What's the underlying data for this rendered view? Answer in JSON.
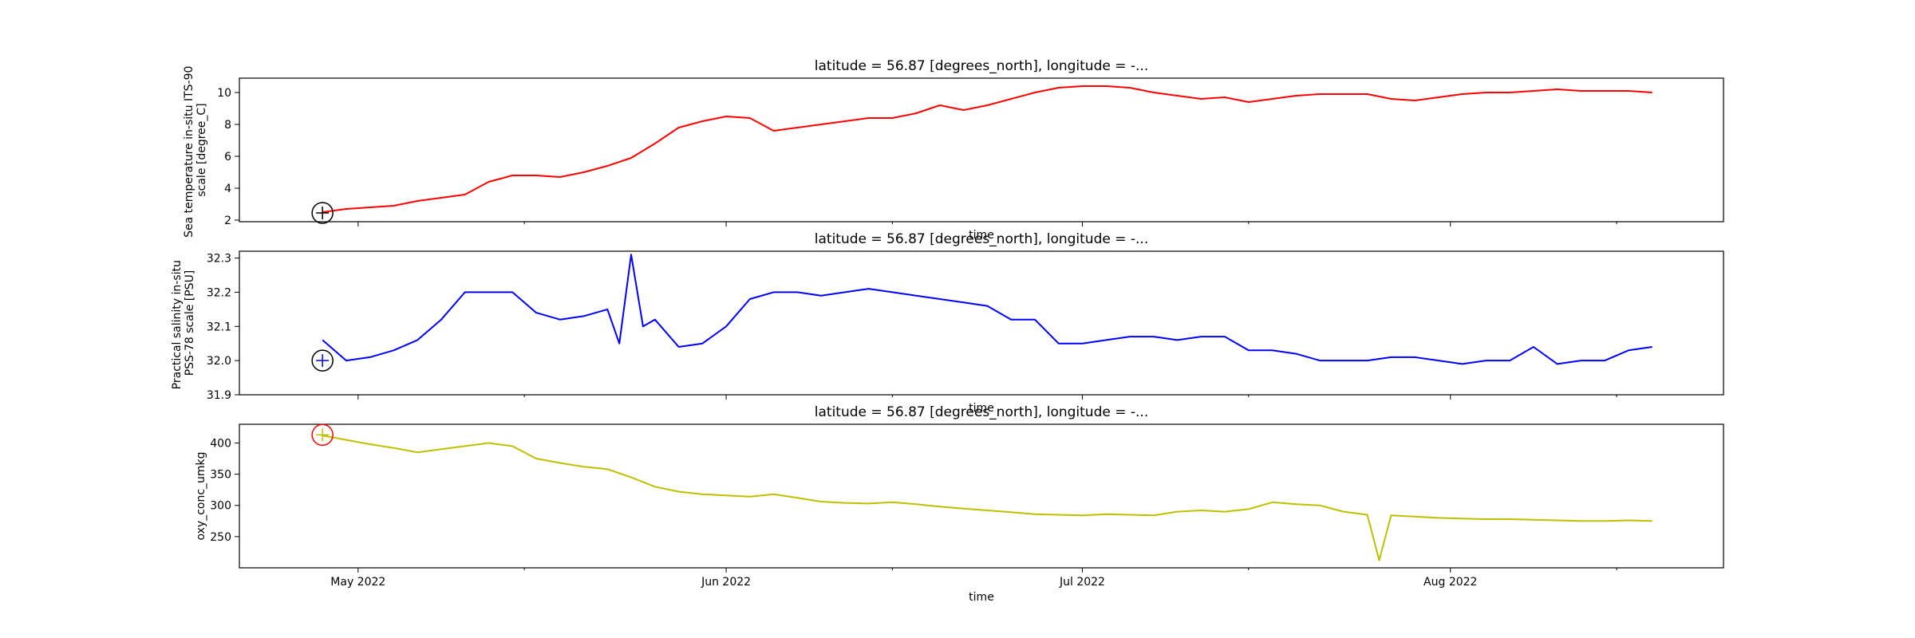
{
  "chart_data": [
    {
      "type": "line",
      "title": "latitude = 56.87 [degrees_north], longitude = -...",
      "xlabel": "time",
      "ylabel_lines": [
        "Sea temperature in-situ ITS-90",
        "scale [degree_C]"
      ],
      "ylim": [
        1.9,
        10.9
      ],
      "yticks": [
        2,
        4,
        6,
        8,
        10
      ],
      "color": "#ff0000",
      "marker": {
        "x": "2022-04-28",
        "y": 2.45,
        "circle_color": "#000000",
        "cross_color": "#000000"
      },
      "series": [
        {
          "x": [
            "2022-04-28",
            "2022-04-30",
            "2022-05-02",
            "2022-05-04",
            "2022-05-06",
            "2022-05-08",
            "2022-05-10",
            "2022-05-12",
            "2022-05-14",
            "2022-05-16",
            "2022-05-18",
            "2022-05-20",
            "2022-05-22",
            "2022-05-24",
            "2022-05-26",
            "2022-05-28",
            "2022-05-30",
            "2022-06-01",
            "2022-06-03",
            "2022-06-05",
            "2022-06-07",
            "2022-06-09",
            "2022-06-11",
            "2022-06-13",
            "2022-06-15",
            "2022-06-17",
            "2022-06-19",
            "2022-06-21",
            "2022-06-23",
            "2022-06-25",
            "2022-06-27",
            "2022-06-29",
            "2022-07-01",
            "2022-07-03",
            "2022-07-05",
            "2022-07-07",
            "2022-07-09",
            "2022-07-11",
            "2022-07-13",
            "2022-07-15",
            "2022-07-17",
            "2022-07-19",
            "2022-07-21",
            "2022-07-23",
            "2022-07-25",
            "2022-07-27",
            "2022-07-29",
            "2022-07-31",
            "2022-08-02",
            "2022-08-04",
            "2022-08-06",
            "2022-08-08",
            "2022-08-10",
            "2022-08-12",
            "2022-08-14",
            "2022-08-16",
            "2022-08-18"
          ],
          "y": [
            2.5,
            2.7,
            2.8,
            2.9,
            3.2,
            3.4,
            3.6,
            4.4,
            4.8,
            4.8,
            4.7,
            5.0,
            5.4,
            5.9,
            6.8,
            7.8,
            8.2,
            8.5,
            8.4,
            7.6,
            7.8,
            8.0,
            8.2,
            8.4,
            8.4,
            8.7,
            9.2,
            8.9,
            9.2,
            9.6,
            10.0,
            10.3,
            10.4,
            10.4,
            10.3,
            10.0,
            9.8,
            9.6,
            9.7,
            9.4,
            9.6,
            9.8,
            9.9,
            9.9,
            9.9,
            9.6,
            9.5,
            9.7,
            9.9,
            10.0,
            10.0,
            10.1,
            10.2,
            10.1,
            10.1,
            10.1,
            10.0
          ]
        }
      ]
    },
    {
      "type": "line",
      "title": "latitude = 56.87 [degrees_north], longitude = -...",
      "xlabel": "time",
      "ylabel_lines": [
        "Practical salinity in-situ",
        "PSS-78 scale [PSU]"
      ],
      "ylim": [
        31.9,
        32.32
      ],
      "yticks": [
        31.9,
        32.0,
        32.1,
        32.2,
        32.3
      ],
      "color": "#0000ff",
      "marker": {
        "x": "2022-04-28",
        "y": 32.0,
        "circle_color": "#000000",
        "cross_color": "#0000ff"
      },
      "series": [
        {
          "x": [
            "2022-04-28",
            "2022-04-30",
            "2022-05-02",
            "2022-05-04",
            "2022-05-06",
            "2022-05-08",
            "2022-05-10",
            "2022-05-12",
            "2022-05-14",
            "2022-05-16",
            "2022-05-18",
            "2022-05-20",
            "2022-05-22",
            "2022-05-23",
            "2022-05-24",
            "2022-05-25",
            "2022-05-26",
            "2022-05-28",
            "2022-05-30",
            "2022-06-01",
            "2022-06-03",
            "2022-06-05",
            "2022-06-07",
            "2022-06-09",
            "2022-06-11",
            "2022-06-13",
            "2022-06-15",
            "2022-06-17",
            "2022-06-19",
            "2022-06-21",
            "2022-06-23",
            "2022-06-25",
            "2022-06-27",
            "2022-06-29",
            "2022-07-01",
            "2022-07-03",
            "2022-07-05",
            "2022-07-07",
            "2022-07-09",
            "2022-07-11",
            "2022-07-13",
            "2022-07-15",
            "2022-07-17",
            "2022-07-19",
            "2022-07-21",
            "2022-07-23",
            "2022-07-25",
            "2022-07-27",
            "2022-07-29",
            "2022-07-31",
            "2022-08-02",
            "2022-08-04",
            "2022-08-06",
            "2022-08-08",
            "2022-08-10",
            "2022-08-12",
            "2022-08-14",
            "2022-08-16",
            "2022-08-18"
          ],
          "y": [
            32.06,
            32.0,
            32.01,
            32.03,
            32.06,
            32.12,
            32.2,
            32.2,
            32.2,
            32.14,
            32.12,
            32.13,
            32.15,
            32.05,
            32.31,
            32.1,
            32.12,
            32.04,
            32.05,
            32.1,
            32.18,
            32.2,
            32.2,
            32.19,
            32.2,
            32.21,
            32.2,
            32.19,
            32.18,
            32.17,
            32.16,
            32.12,
            32.12,
            32.05,
            32.05,
            32.06,
            32.07,
            32.07,
            32.06,
            32.07,
            32.07,
            32.03,
            32.03,
            32.02,
            32.0,
            32.0,
            32.0,
            32.01,
            32.01,
            32.0,
            31.99,
            32.0,
            32.0,
            32.04,
            31.99,
            32.0,
            32.0,
            32.03,
            32.04
          ]
        }
      ]
    },
    {
      "type": "line",
      "title": "latitude = 56.87 [degrees_north], longitude = -...",
      "xlabel": "time",
      "ylabel_lines": [
        "oxy_conc_umkg"
      ],
      "ylim": [
        200,
        430
      ],
      "yticks": [
        250,
        300,
        350,
        400
      ],
      "color": "#bfbf00",
      "marker": {
        "x": "2022-04-28",
        "y": 413,
        "circle_color": "#ff0000",
        "cross_color": "#bfbf00"
      },
      "xticks": [
        "May 2022",
        "Jun 2022",
        "Jul 2022",
        "Aug 2022"
      ],
      "series": [
        {
          "x": [
            "2022-04-28",
            "2022-04-30",
            "2022-05-02",
            "2022-05-04",
            "2022-05-06",
            "2022-05-08",
            "2022-05-10",
            "2022-05-12",
            "2022-05-14",
            "2022-05-16",
            "2022-05-18",
            "2022-05-20",
            "2022-05-22",
            "2022-05-24",
            "2022-05-26",
            "2022-05-28",
            "2022-05-30",
            "2022-06-01",
            "2022-06-03",
            "2022-06-05",
            "2022-06-07",
            "2022-06-09",
            "2022-06-11",
            "2022-06-13",
            "2022-06-15",
            "2022-06-17",
            "2022-06-19",
            "2022-06-21",
            "2022-06-23",
            "2022-06-25",
            "2022-06-27",
            "2022-06-29",
            "2022-07-01",
            "2022-07-03",
            "2022-07-05",
            "2022-07-07",
            "2022-07-09",
            "2022-07-11",
            "2022-07-13",
            "2022-07-15",
            "2022-07-17",
            "2022-07-19",
            "2022-07-21",
            "2022-07-23",
            "2022-07-25",
            "2022-07-26",
            "2022-07-27",
            "2022-07-29",
            "2022-07-31",
            "2022-08-02",
            "2022-08-04",
            "2022-08-06",
            "2022-08-08",
            "2022-08-10",
            "2022-08-12",
            "2022-08-14",
            "2022-08-16",
            "2022-08-18"
          ],
          "y": [
            412,
            405,
            398,
            392,
            385,
            390,
            395,
            400,
            395,
            375,
            368,
            362,
            358,
            345,
            330,
            322,
            318,
            316,
            314,
            318,
            312,
            306,
            304,
            303,
            305,
            302,
            298,
            295,
            292,
            289,
            286,
            285,
            284,
            286,
            285,
            284,
            290,
            292,
            290,
            294,
            305,
            302,
            300,
            290,
            285,
            212,
            284,
            282,
            280,
            279,
            278,
            278,
            277,
            276,
            275,
            275,
            276,
            275
          ]
        }
      ]
    }
  ]
}
